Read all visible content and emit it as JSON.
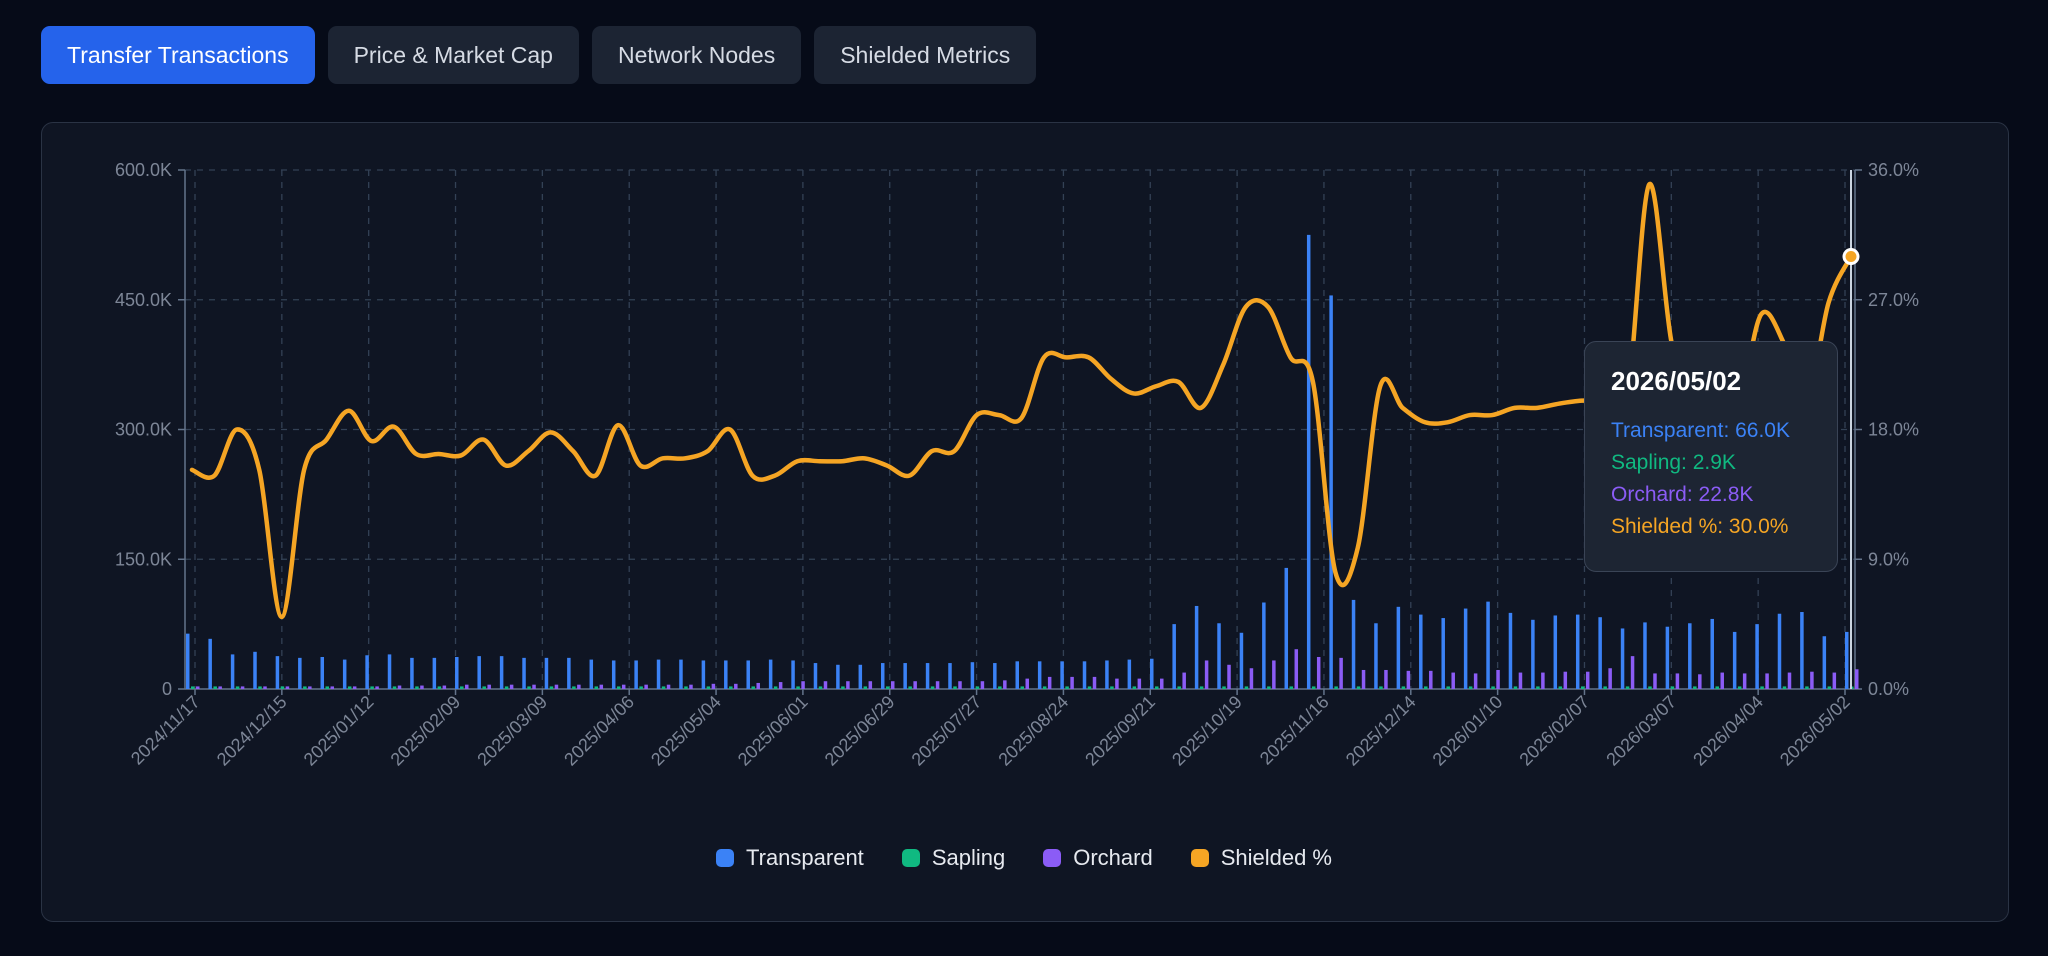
{
  "tabs": [
    {
      "label": "Transfer Transactions",
      "active": true
    },
    {
      "label": "Price & Market Cap",
      "active": false
    },
    {
      "label": "Network Nodes",
      "active": false
    },
    {
      "label": "Shielded Metrics",
      "active": false
    }
  ],
  "colors": {
    "transparent": "#3b82f6",
    "sapling": "#10b981",
    "orchard": "#8b5cf6",
    "shielded": "#f5a524",
    "grid": "#334155",
    "axis_text": "#7d8697"
  },
  "tooltip": {
    "date": "2026/05/02",
    "transparent": "Transparent: 66.0K",
    "sapling": "Sapling: 2.9K",
    "orchard": "Orchard: 22.8K",
    "shielded": "Shielded %: 30.0%"
  },
  "legend": [
    {
      "label": "Transparent",
      "color": "#3b82f6"
    },
    {
      "label": "Sapling",
      "color": "#10b981"
    },
    {
      "label": "Orchard",
      "color": "#8b5cf6"
    },
    {
      "label": "Shielded %",
      "color": "#f5a524"
    }
  ],
  "chart_data": {
    "type": "bar+line",
    "x_tick_labels": [
      "2024/11/17",
      "2024/12/15",
      "2025/01/12",
      "2025/02/09",
      "2025/03/09",
      "2025/04/06",
      "2025/05/04",
      "2025/06/01",
      "2025/06/29",
      "2025/07/27",
      "2025/08/24",
      "2025/09/21",
      "2025/10/19",
      "2025/11/16",
      "2025/12/14",
      "2026/01/10",
      "2026/02/07",
      "2026/03/07",
      "2026/04/04",
      "2026/05/02"
    ],
    "y_left": {
      "ticks": [
        "0",
        "150.0K",
        "300.0K",
        "450.0K",
        "600.0K"
      ],
      "min": 0,
      "max": 600000
    },
    "y_right": {
      "ticks": [
        "0.0%",
        "9.0%",
        "18.0%",
        "27.0%",
        "36.0%"
      ],
      "min": 0,
      "max": 36
    },
    "grid": true,
    "legend_position": "bottom",
    "series": [
      {
        "name": "Transparent",
        "kind": "bar",
        "values": [
          64000,
          58000,
          40000,
          43000,
          38000,
          36000,
          37000,
          34000,
          39000,
          40000,
          36000,
          36000,
          37000,
          38000,
          38000,
          36000,
          36000,
          36000,
          34000,
          33000,
          33000,
          34000,
          34000,
          33000,
          33000,
          33000,
          34000,
          33000,
          30000,
          28000,
          28000,
          30000,
          30000,
          30000,
          30000,
          31000,
          30000,
          32000,
          32000,
          32000,
          32000,
          33000,
          34000,
          35000,
          75000,
          96000,
          76000,
          65000,
          100000,
          140000,
          525000,
          455000,
          103000,
          76000,
          95000,
          86000,
          82000,
          93000,
          101000,
          88000,
          80000,
          85000,
          86000,
          83000,
          70000,
          77000,
          72000,
          76000,
          81000,
          66000,
          75000,
          87000,
          89000,
          61000,
          66000
        ]
      },
      {
        "name": "Sapling",
        "kind": "bar",
        "values": [
          3000,
          3000,
          3000,
          3000,
          3000,
          3000,
          3000,
          3000,
          3000,
          3000,
          3000,
          3000,
          3000,
          3000,
          3000,
          3000,
          3000,
          3000,
          3000,
          3000,
          3000,
          3000,
          3000,
          3000,
          3000,
          3000,
          3000,
          3000,
          3000,
          3000,
          3000,
          3000,
          3000,
          3000,
          3000,
          3000,
          3000,
          3000,
          3000,
          3000,
          3000,
          3000,
          3000,
          3000,
          3000,
          3000,
          3000,
          3000,
          3000,
          3000,
          3000,
          3000,
          3000,
          3000,
          3000,
          3000,
          3000,
          3000,
          3000,
          3000,
          3000,
          3000,
          3000,
          3000,
          3000,
          3000,
          3000,
          3000,
          3000,
          3000,
          3000,
          3000,
          3000,
          3000,
          2900
        ]
      },
      {
        "name": "Orchard",
        "kind": "bar",
        "values": [
          3000,
          3000,
          3000,
          3000,
          3000,
          3000,
          3000,
          3000,
          3000,
          4000,
          4000,
          4000,
          5000,
          5000,
          5000,
          5000,
          5000,
          5000,
          5000,
          5000,
          5000,
          5000,
          5000,
          6000,
          6000,
          7000,
          8000,
          9000,
          9000,
          9000,
          9000,
          9000,
          9000,
          9000,
          9000,
          9000,
          10000,
          12000,
          14000,
          14000,
          14000,
          12000,
          12000,
          12000,
          19000,
          33000,
          28000,
          24000,
          33000,
          46000,
          37000,
          36000,
          22000,
          22000,
          21000,
          21000,
          19000,
          18000,
          22000,
          19000,
          19000,
          20000,
          20000,
          24000,
          38000,
          18000,
          18000,
          17000,
          19000,
          18000,
          18000,
          19000,
          20000,
          19000,
          22800
        ]
      },
      {
        "name": "Shielded %",
        "kind": "line",
        "axis": "right",
        "values": [
          15.2,
          14.8,
          18.0,
          15.2,
          5.0,
          15.2,
          17.3,
          19.3,
          17.2,
          18.2,
          16.3,
          16.3,
          16.2,
          17.3,
          15.5,
          16.5,
          17.8,
          16.5,
          14.8,
          18.3,
          15.5,
          16.0,
          16.0,
          16.5,
          18.0,
          14.8,
          14.8,
          15.8,
          15.8,
          15.8,
          16.0,
          15.5,
          14.8,
          16.5,
          16.5,
          19.0,
          19.0,
          18.8,
          23.0,
          23.0,
          23.0,
          21.5,
          20.5,
          21.0,
          21.3,
          19.5,
          22.5,
          26.5,
          26.5,
          23.0,
          21.3,
          8.1,
          9.8,
          21.0,
          19.5,
          18.5,
          18.5,
          19.0,
          19.0,
          19.5,
          19.5,
          19.8,
          20.0,
          20.0,
          20.0,
          35.0,
          24.0,
          19.8,
          20.5,
          20.0,
          26.0,
          24.0,
          19.7,
          26.8,
          30.0
        ]
      }
    ]
  }
}
